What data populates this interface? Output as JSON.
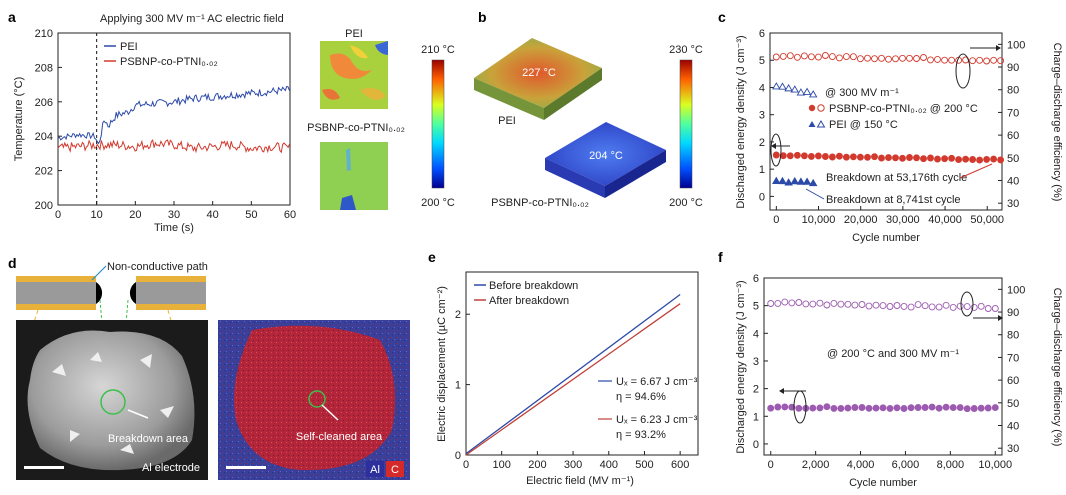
{
  "panels": {
    "a": {
      "letter": "a",
      "title": "Applying 300 MV m⁻¹ AC electric field",
      "ylabel": "Temperature (°C)",
      "xlabel": "Time (s)",
      "legend": [
        "PEI",
        "PSBNP-co-PTNI₀.₀₂"
      ],
      "cmap_top": "210 °C",
      "cmap_bottom": "200 °C",
      "thermal_label_top": "PEI",
      "thermal_label_bottom": "PSBNP-co-PTNI₀.₀₂"
    },
    "b": {
      "letter": "b",
      "block_top_temp": "227 °C",
      "block_bottom_temp": "204 °C",
      "label_top": "PEI",
      "label_bottom": "PSBNP-co-PTNI₀.₀₂",
      "cmap_top": "230 °C",
      "cmap_bottom": "200 °C"
    },
    "c": {
      "letter": "c",
      "ylabel_left": "Discharged energy density (J cm⁻³)",
      "ylabel_right": "Charge–discharge efficiency (%)",
      "xlabel": "Cycle number",
      "note": "@ 300 MV m⁻¹",
      "legend": [
        "PSBNP-co-PTNI₀.₀₂ @ 200 °C",
        "PEI @ 150 °C"
      ],
      "annot_a": "Breakdown at 53,176th cycle",
      "annot_b": "Breakdown at 8,741st cycle"
    },
    "d": {
      "letter": "d",
      "path_label": "Non-conductive path",
      "area_label": "Breakdown area",
      "electrode_label": "Al electrode",
      "clean_label": "Self-cleaned area",
      "legend_al": "Al",
      "legend_c": "C"
    },
    "e": {
      "letter": "e",
      "ylabel": "Electric displacement (µC cm⁻²)",
      "xlabel": "Electric field (MV m⁻¹)",
      "legend": [
        "Before breakdown",
        "After breakdown"
      ],
      "ud1": "Uₓ = 6.67 J cm⁻³",
      "eta1": "η = 94.6%",
      "ud2": "Uₓ = 6.23 J cm⁻³",
      "eta2": "η = 93.2%"
    },
    "f": {
      "letter": "f",
      "ylabel_left": "Discharged energy density (J cm⁻³)",
      "ylabel_right": "Charge–discharge efficiency (%)",
      "xlabel": "Cycle number",
      "note": "@ 200 °C and 300 MV m⁻¹"
    }
  },
  "chart_data": [
    {
      "panel": "a",
      "type": "line",
      "x_ticks": [
        0,
        10,
        20,
        30,
        40,
        50,
        60
      ],
      "y_ticks": [
        200,
        202,
        204,
        206,
        208,
        210
      ],
      "xlim": [
        0,
        60
      ],
      "ylim": [
        200,
        210
      ],
      "event_x": 10,
      "series": [
        {
          "name": "PEI",
          "color": "#2c4aa8",
          "x": [
            0,
            5,
            9.5,
            10.5,
            12,
            13,
            15,
            18,
            20,
            25,
            30,
            35,
            40,
            45,
            50,
            55,
            60
          ],
          "y": [
            203.9,
            204.1,
            204.0,
            203.5,
            205.0,
            204.6,
            205.2,
            205.4,
            205.8,
            205.9,
            206.0,
            206.2,
            206.3,
            206.4,
            206.5,
            206.6,
            206.7
          ]
        },
        {
          "name": "PSBNP-co-PTNI₀.₀₂",
          "color": "#d23a2e",
          "x": [
            0,
            5,
            10,
            15,
            20,
            25,
            30,
            35,
            40,
            45,
            50,
            55,
            60
          ],
          "y": [
            203.3,
            203.4,
            203.5,
            203.5,
            203.4,
            203.6,
            203.5,
            203.3,
            203.4,
            203.5,
            203.3,
            203.4,
            203.3
          ]
        }
      ]
    },
    {
      "panel": "c",
      "type": "scatter",
      "x_ticks": [
        0,
        10000,
        20000,
        30000,
        40000,
        50000
      ],
      "x_tick_labels": [
        "0",
        "10,000",
        "20,000",
        "30,000",
        "40,000",
        "50,000"
      ],
      "xlim": [
        -1500,
        53500
      ],
      "y_left_ticks": [
        0,
        1,
        2,
        3,
        4,
        5,
        6
      ],
      "ylim_left": [
        -0.5,
        6
      ],
      "y_right_ticks": [
        30,
        40,
        50,
        60,
        70,
        80,
        90,
        100
      ],
      "ylim_right": [
        27,
        105
      ],
      "series": [
        {
          "name": "PSBNP efficiency",
          "axis": "right",
          "marker": "circle-open",
          "color": "#d23a2e",
          "x": [
            0,
            53176
          ],
          "y": [
            95,
            93
          ]
        },
        {
          "name": "PSBNP energy",
          "axis": "left",
          "marker": "circle-filled",
          "color": "#d23a2e",
          "x": [
            0,
            53176
          ],
          "y": [
            1.5,
            1.35
          ]
        },
        {
          "name": "PEI efficiency",
          "axis": "right",
          "marker": "triangle-open",
          "color": "#2c4aa8",
          "x": [
            0,
            8741
          ],
          "y": [
            82,
            78
          ]
        },
        {
          "name": "PEI energy",
          "axis": "left",
          "marker": "triangle-filled",
          "color": "#2c4aa8",
          "x": [
            0,
            8741
          ],
          "y": [
            0.55,
            0.5
          ]
        }
      ]
    },
    {
      "panel": "e",
      "type": "line",
      "x_ticks": [
        0,
        100,
        200,
        300,
        400,
        500,
        600
      ],
      "y_ticks": [
        0,
        1,
        2
      ],
      "xlim": [
        0,
        650
      ],
      "ylim": [
        0,
        2.6
      ],
      "series": [
        {
          "name": "Before breakdown",
          "color": "#2c4aa8",
          "x": [
            0,
            600
          ],
          "y": [
            0.02,
            2.28
          ]
        },
        {
          "name": "After breakdown",
          "color": "#c0413a",
          "x": [
            0,
            600
          ],
          "y": [
            0.0,
            2.15
          ]
        }
      ]
    },
    {
      "panel": "f",
      "type": "scatter",
      "x_ticks": [
        0,
        2000,
        4000,
        6000,
        8000,
        10000
      ],
      "x_tick_labels": [
        "0",
        "2,000",
        "4,000",
        "6,000",
        "8,000",
        "10,000"
      ],
      "xlim": [
        -300,
        10300
      ],
      "y_left_ticks": [
        0,
        1,
        2,
        3,
        4,
        5,
        6
      ],
      "ylim_left": [
        -0.4,
        6
      ],
      "y_right_ticks": [
        30,
        40,
        50,
        60,
        70,
        80,
        90,
        100
      ],
      "ylim_right": [
        27,
        105
      ],
      "series": [
        {
          "name": "efficiency",
          "axis": "right",
          "marker": "circle-open",
          "color": "#9c5bb0",
          "x": [
            0,
            10000
          ],
          "y": [
            94,
            92
          ]
        },
        {
          "name": "energy",
          "axis": "left",
          "marker": "circle-filled",
          "color": "#9c5bb0",
          "x": [
            0,
            10000
          ],
          "y": [
            1.32,
            1.3
          ]
        }
      ]
    }
  ]
}
